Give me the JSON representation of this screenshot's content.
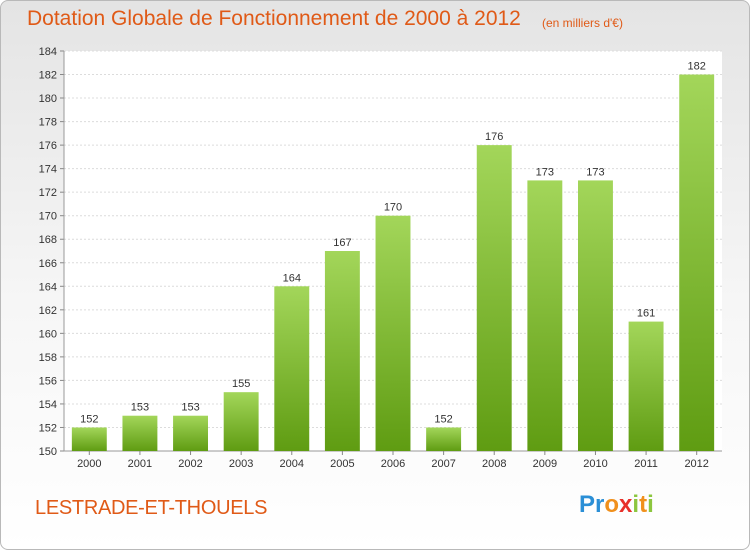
{
  "header": {
    "title": "Dotation Globale de Fonctionnement de 2000 à 2012",
    "subtitle": "(en milliers d'€)"
  },
  "footer": {
    "place": "LESTRADE-ET-THOUELS",
    "logo_letters": [
      {
        "ch": "P",
        "color": "#2b8fd6"
      },
      {
        "ch": "r",
        "color": "#2b8fd6"
      },
      {
        "ch": "o",
        "color": "#f0901c"
      },
      {
        "ch": "x",
        "color": "#e8302a"
      },
      {
        "ch": "i",
        "color": "#8cc63f"
      },
      {
        "ch": "t",
        "color": "#f0901c"
      },
      {
        "ch": "i",
        "color": "#8cc63f"
      }
    ]
  },
  "colors": {
    "bar_top": "#a3d65a",
    "bar_bottom": "#5f9c12",
    "accent": "#e05a17"
  },
  "chart_data": {
    "type": "bar",
    "categories": [
      "2000",
      "2001",
      "2002",
      "2003",
      "2004",
      "2005",
      "2006",
      "2007",
      "2008",
      "2009",
      "2010",
      "2011",
      "2012"
    ],
    "values": [
      152,
      153,
      153,
      155,
      164,
      167,
      170,
      152,
      176,
      173,
      173,
      161,
      182
    ],
    "ylim": [
      150,
      184
    ],
    "yticks": [
      150,
      152,
      154,
      156,
      158,
      160,
      162,
      164,
      166,
      168,
      170,
      172,
      174,
      176,
      178,
      180,
      182,
      184
    ],
    "grid": true,
    "data_labels": true
  }
}
